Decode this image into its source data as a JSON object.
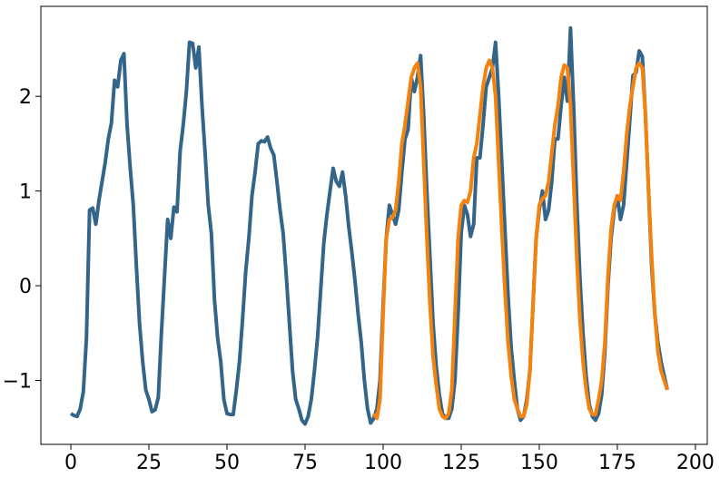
{
  "chart_data": {
    "type": "line",
    "xlim": [
      -9.6,
      203.8
    ],
    "ylim": [
      -1.675,
      2.95
    ],
    "xticks": [
      0,
      25,
      50,
      75,
      100,
      125,
      150,
      175,
      200
    ],
    "yticks": [
      {
        "value": -1,
        "label": "−1"
      },
      0,
      1,
      2
    ],
    "series": [
      {
        "color": "#33658a",
        "x": [
          0,
          1,
          2,
          3,
          4,
          5,
          6,
          7,
          8,
          9,
          10,
          11,
          12,
          13,
          14,
          15,
          16,
          17,
          18,
          19,
          20,
          21,
          22,
          23,
          24,
          25,
          26,
          27,
          28,
          29,
          30,
          31,
          32,
          33,
          34,
          35,
          36,
          37,
          38,
          39,
          40,
          41,
          42,
          43,
          44,
          45,
          46,
          47,
          48,
          49,
          50,
          51,
          52,
          53,
          54,
          55,
          56,
          57,
          58,
          59,
          60,
          61,
          62,
          63,
          64,
          65,
          66,
          67,
          68,
          69,
          70,
          71,
          72,
          73,
          74,
          75,
          76,
          77,
          78,
          79,
          80,
          81,
          82,
          83,
          84,
          85,
          86,
          87,
          88,
          89,
          90,
          91,
          92,
          93,
          94,
          95,
          96,
          97,
          98,
          99,
          100,
          101,
          102,
          103,
          104,
          105,
          106,
          107,
          108,
          109,
          110,
          111,
          112,
          113,
          114,
          115,
          116,
          117,
          118,
          119,
          120,
          121,
          122,
          123,
          124,
          125,
          126,
          127,
          128,
          129,
          130,
          131,
          132,
          133,
          134,
          135,
          136,
          137,
          138,
          139,
          140,
          141,
          142,
          143,
          144,
          145,
          146,
          147,
          148,
          149,
          150,
          151,
          152,
          153,
          154,
          155,
          156,
          157,
          158,
          159,
          160,
          161,
          162,
          163,
          164,
          165,
          166,
          167,
          168,
          169,
          170,
          171,
          172,
          173,
          174,
          175,
          176,
          177,
          178,
          179,
          180,
          181,
          182,
          183,
          184,
          185,
          186,
          187,
          188,
          189,
          190,
          191
        ],
        "values": [
          -1.35,
          -1.37,
          -1.38,
          -1.3,
          -1.12,
          -0.55,
          0.8,
          0.82,
          0.65,
          0.9,
          1.1,
          1.3,
          1.55,
          1.72,
          2.17,
          2.1,
          2.38,
          2.45,
          1.7,
          1.25,
          0.85,
          0.2,
          -0.4,
          -0.8,
          -1.1,
          -1.2,
          -1.33,
          -1.31,
          -1.18,
          -0.5,
          0.1,
          0.7,
          0.5,
          0.83,
          0.78,
          1.42,
          1.7,
          2.05,
          2.57,
          2.56,
          2.3,
          2.52,
          1.9,
          1.4,
          0.85,
          0.55,
          -0.15,
          -0.55,
          -0.8,
          -1.2,
          -1.35,
          -1.36,
          -1.36,
          -1.1,
          -0.8,
          -0.35,
          0.15,
          0.5,
          0.95,
          1.2,
          1.5,
          1.53,
          1.52,
          1.57,
          1.45,
          1.38,
          1.1,
          0.8,
          0.55,
          0.1,
          -0.4,
          -0.9,
          -1.2,
          -1.3,
          -1.42,
          -1.46,
          -1.38,
          -1.2,
          -0.9,
          -0.55,
          -0.05,
          0.45,
          0.75,
          1.0,
          1.24,
          1.1,
          1.05,
          1.2,
          0.95,
          0.62,
          0.35,
          0.05,
          -0.3,
          -0.6,
          -1.0,
          -1.3,
          -1.45,
          -1.4,
          -1.3,
          -1.0,
          -0.2,
          0.5,
          0.85,
          0.75,
          0.65,
          0.8,
          1.2,
          1.55,
          1.65,
          2.2,
          2.05,
          2.2,
          2.43,
          1.8,
          1.0,
          0.3,
          -0.4,
          -0.85,
          -1.15,
          -1.35,
          -1.4,
          -1.4,
          -1.3,
          -1.0,
          -0.3,
          0.55,
          0.85,
          0.75,
          0.52,
          0.65,
          1.35,
          1.35,
          1.7,
          2.1,
          2.2,
          2.3,
          2.57,
          2.0,
          1.3,
          0.6,
          -0.1,
          -0.65,
          -1.0,
          -1.3,
          -1.42,
          -1.38,
          -1.2,
          -0.9,
          -0.2,
          0.5,
          0.8,
          1.0,
          0.7,
          0.8,
          1.1,
          1.55,
          1.55,
          1.9,
          2.2,
          1.95,
          2.72,
          1.9,
          0.9,
          0.1,
          -0.5,
          -0.95,
          -1.25,
          -1.38,
          -1.42,
          -1.35,
          -1.15,
          -0.7,
          0.0,
          0.5,
          0.8,
          0.95,
          0.7,
          0.85,
          1.3,
          1.75,
          2.22,
          2.25,
          2.48,
          2.42,
          1.8,
          1.0,
          0.2,
          -0.3,
          -0.6,
          -0.8,
          -0.95,
          -1.1
        ]
      },
      {
        "color": "#f5820d",
        "x": [
          97,
          98,
          99,
          100,
          101,
          102,
          103,
          104,
          105,
          106,
          107,
          108,
          109,
          110,
          111,
          112,
          113,
          114,
          115,
          116,
          117,
          118,
          119,
          120,
          121,
          122,
          123,
          124,
          125,
          126,
          127,
          128,
          129,
          130,
          131,
          132,
          133,
          134,
          135,
          136,
          137,
          138,
          139,
          140,
          141,
          142,
          143,
          144,
          145,
          146,
          147,
          148,
          149,
          150,
          151,
          152,
          153,
          154,
          155,
          156,
          157,
          158,
          159,
          160,
          161,
          162,
          163,
          164,
          165,
          166,
          167,
          168,
          169,
          170,
          171,
          172,
          173,
          174,
          175,
          176,
          177,
          178,
          179,
          180,
          181,
          182,
          183,
          184,
          185,
          186,
          187,
          188,
          189,
          190,
          191
        ],
        "values": [
          -1.35,
          -1.4,
          -1.2,
          -0.3,
          0.5,
          0.7,
          0.72,
          0.8,
          1.1,
          1.5,
          1.7,
          1.95,
          2.2,
          2.3,
          2.35,
          2.1,
          1.3,
          0.5,
          -0.2,
          -0.75,
          -1.05,
          -1.3,
          -1.38,
          -1.4,
          -1.35,
          -1.1,
          -0.3,
          0.5,
          0.85,
          0.9,
          0.88,
          1.0,
          1.35,
          1.5,
          1.8,
          2.1,
          2.3,
          2.38,
          2.3,
          2.0,
          1.3,
          0.6,
          -0.05,
          -0.6,
          -0.95,
          -1.2,
          -1.3,
          -1.38,
          -1.38,
          -1.25,
          -0.9,
          -0.2,
          0.5,
          0.85,
          0.92,
          0.95,
          1.1,
          1.4,
          1.7,
          1.9,
          2.2,
          2.33,
          2.3,
          1.9,
          1.1,
          0.3,
          -0.35,
          -0.8,
          -1.1,
          -1.3,
          -1.36,
          -1.36,
          -1.2,
          -1.0,
          -0.6,
          0.1,
          0.6,
          0.85,
          0.95,
          0.9,
          1.2,
          1.6,
          1.9,
          2.1,
          2.3,
          2.35,
          2.3,
          1.8,
          1.0,
          0.3,
          -0.3,
          -0.7,
          -0.9,
          -1.0,
          -1.1
        ]
      }
    ]
  }
}
